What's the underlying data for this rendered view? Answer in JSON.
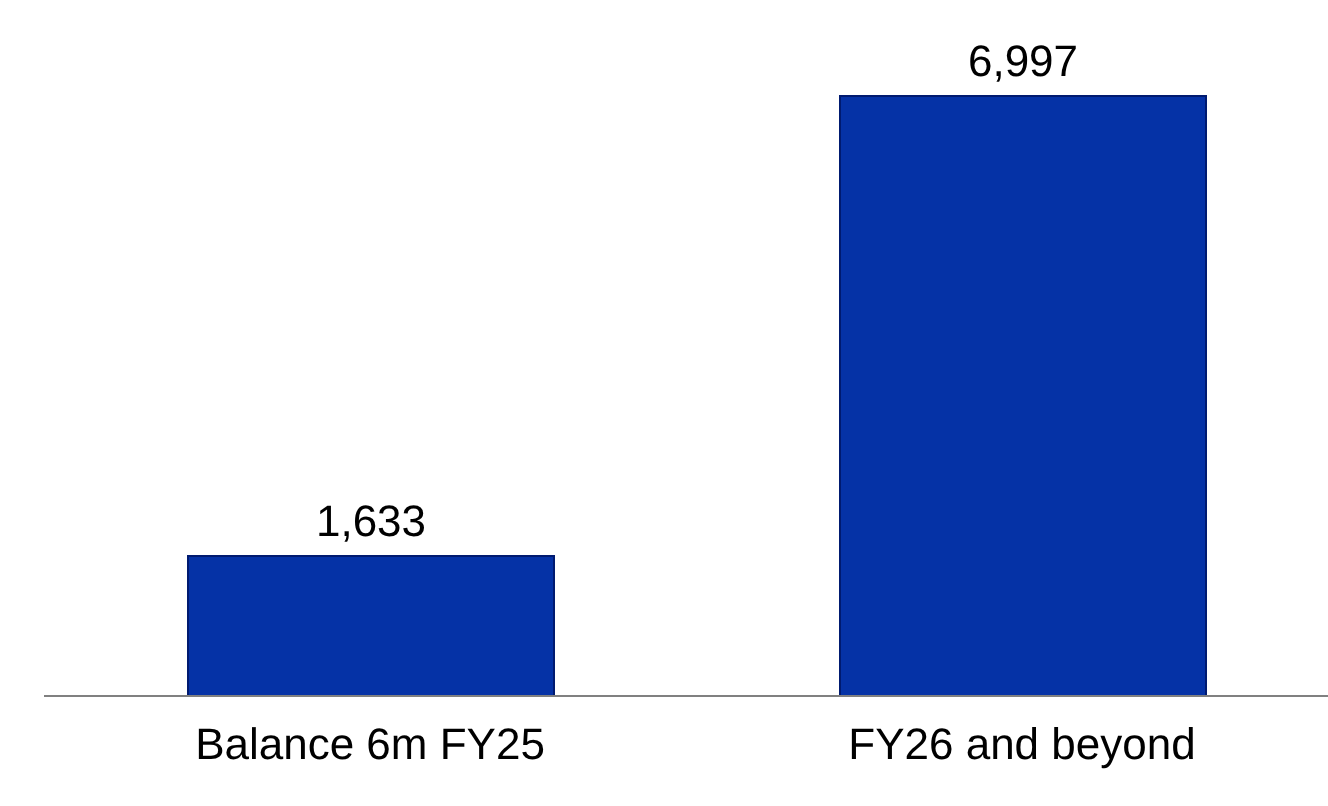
{
  "chart_data": {
    "type": "bar",
    "categories": [
      "Balance 6m FY25",
      "FY26 and beyond"
    ],
    "values": [
      1633,
      6997
    ],
    "value_labels": [
      "1,633",
      "6,997"
    ],
    "color": "#0532a6"
  }
}
